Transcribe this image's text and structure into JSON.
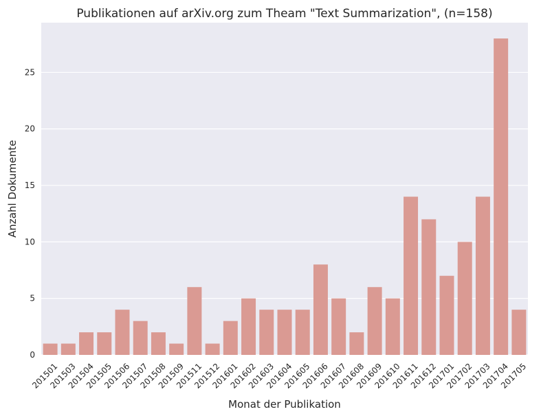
{
  "chart_data": {
    "type": "bar",
    "title": "Publikationen auf arXiv.org zum Theam \"Text Summarization\", (n=158)",
    "xlabel": "Monat der Publikation",
    "ylabel": "Anzahl Dokumente",
    "categories": [
      "201501",
      "201503",
      "201504",
      "201505",
      "201506",
      "201507",
      "201508",
      "201509",
      "201511",
      "201512",
      "201601",
      "201602",
      "201603",
      "201604",
      "201605",
      "201606",
      "201607",
      "201608",
      "201609",
      "201610",
      "201611",
      "201612",
      "201701",
      "201702",
      "201703",
      "201704",
      "201705"
    ],
    "values": [
      1,
      1,
      2,
      2,
      4,
      3,
      2,
      1,
      6,
      1,
      3,
      5,
      4,
      4,
      4,
      8,
      5,
      2,
      6,
      5,
      14,
      12,
      7,
      10,
      14,
      28,
      4
    ],
    "ylim": [
      0,
      29.4
    ],
    "yticks": [
      0,
      5,
      10,
      15,
      20,
      25
    ],
    "grid": true,
    "colors": {
      "bar": "#DA9A93",
      "plot_background": "#EAEAF2",
      "grid": "#FFFFFF",
      "text": "#262626"
    }
  }
}
